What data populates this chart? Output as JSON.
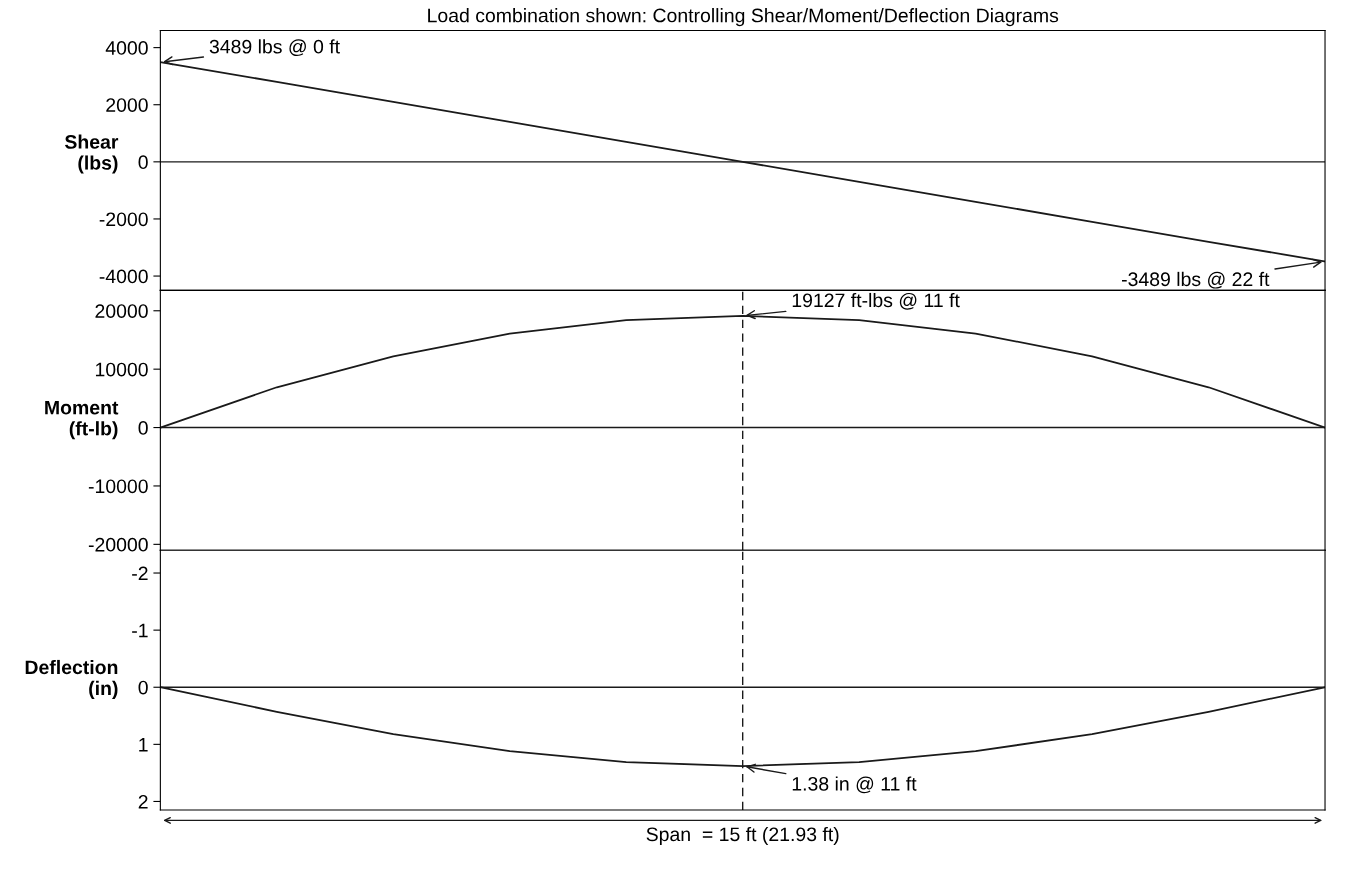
{
  "chart_data": [
    {
      "type": "line",
      "title": "Load combination shown: Controlling Shear/Moment/Deflection Diagrams",
      "ylabel": "Shear\n(lbs)",
      "categories": [
        null,
        null,
        null,
        null,
        null,
        null,
        null,
        null,
        null,
        null,
        null
      ],
      "ylim": [
        -4500,
        4600
      ],
      "yticks": [
        4000,
        2000,
        0,
        -2000,
        -4000
      ],
      "grid": false,
      "legend": false,
      "marker": "none",
      "line_style": "solid",
      "series": [
        {
          "color": "#1a1a1a",
          "values": [
            3489,
            2800,
            2100,
            1400,
            700,
            0,
            -700,
            -1400,
            -2100,
            -2800,
            -3489
          ]
        }
      ],
      "ref_lines": [
        {
          "axis": "y",
          "value": 0,
          "color": "#1a1a1a",
          "line_style": "solid"
        }
      ],
      "annotations": [
        "3489 lbs @ 0 ft",
        "-3489 lbs @ 22 ft"
      ]
    },
    {
      "type": "line",
      "ylabel": "Moment\n(ft-lb)",
      "categories": [
        null,
        null,
        null,
        null,
        null,
        null,
        null,
        null,
        null,
        null,
        null
      ],
      "ylim": [
        -21000,
        23500
      ],
      "yticks": [
        20000,
        10000,
        0,
        -10000,
        -20000
      ],
      "grid": false,
      "legend": false,
      "marker": "none",
      "line_style": "solid",
      "series": [
        {
          "color": "#1a1a1a",
          "values": [
            0,
            6900,
            12200,
            16100,
            18400,
            19127,
            18400,
            16100,
            12200,
            6900,
            0
          ]
        }
      ],
      "ref_lines": [
        {
          "axis": "y",
          "value": 0,
          "color": "#1a1a1a",
          "line_style": "solid"
        }
      ],
      "annotations": [
        "19127 ft-lbs @ 11 ft"
      ]
    },
    {
      "type": "line",
      "ylabel": "Deflection\n(in)",
      "categories": [
        null,
        null,
        null,
        null,
        null,
        null,
        null,
        null,
        null,
        null,
        null
      ],
      "ylim": [
        2.15,
        -2.4
      ],
      "yticks": [
        -2,
        -1,
        0,
        1,
        2
      ],
      "grid": false,
      "legend": false,
      "marker": "none",
      "line_style": "solid",
      "series": [
        {
          "color": "#1a1a1a",
          "values": [
            0,
            0.43,
            0.82,
            1.12,
            1.31,
            1.38,
            1.31,
            1.12,
            0.82,
            0.43,
            0
          ]
        }
      ],
      "ref_lines": [
        {
          "axis": "y",
          "value": 0,
          "color": "#1a1a1a",
          "line_style": "solid"
        }
      ],
      "annotations": [
        {
          "text": "1.38 in @ 11 ft",
          "y": 1.38
        },
        "Span  = 15 ft (21.93 ft)"
      ]
    }
  ]
}
